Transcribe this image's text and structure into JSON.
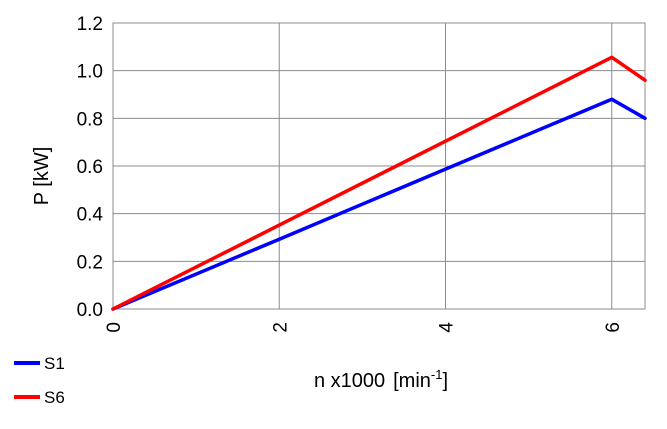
{
  "chart_data": {
    "type": "line",
    "xlabel": "n x1000",
    "xlabel_unit_prefix": "[min",
    "xlabel_unit_sup": "-1",
    "xlabel_unit_suffix": "]",
    "ylabel": "P [kW]",
    "xlim": [
      0,
      6.4
    ],
    "ylim": [
      0,
      1.2
    ],
    "x_ticks": [
      "0",
      "2",
      "4",
      "6"
    ],
    "x_tick_values": [
      0,
      2,
      4,
      6
    ],
    "y_ticks": [
      "0.0",
      "0.2",
      "0.4",
      "0.6",
      "0.8",
      "1.0",
      "1.2"
    ],
    "y_tick_values": [
      0,
      0.2,
      0.4,
      0.6,
      0.8,
      1.0,
      1.2
    ],
    "grid": true,
    "legend_position": "bottom-left",
    "series": [
      {
        "name": "S1",
        "color": "#0000ff",
        "x": [
          0,
          2,
          4,
          5.5,
          6,
          6.4
        ],
        "y": [
          0,
          0.293,
          0.587,
          0.807,
          0.88,
          0.8
        ]
      },
      {
        "name": "S6",
        "color": "#ff0000",
        "x": [
          0,
          2,
          4,
          5.5,
          6,
          6.4
        ],
        "y": [
          0,
          0.352,
          0.704,
          0.968,
          1.056,
          0.96
        ]
      }
    ]
  }
}
